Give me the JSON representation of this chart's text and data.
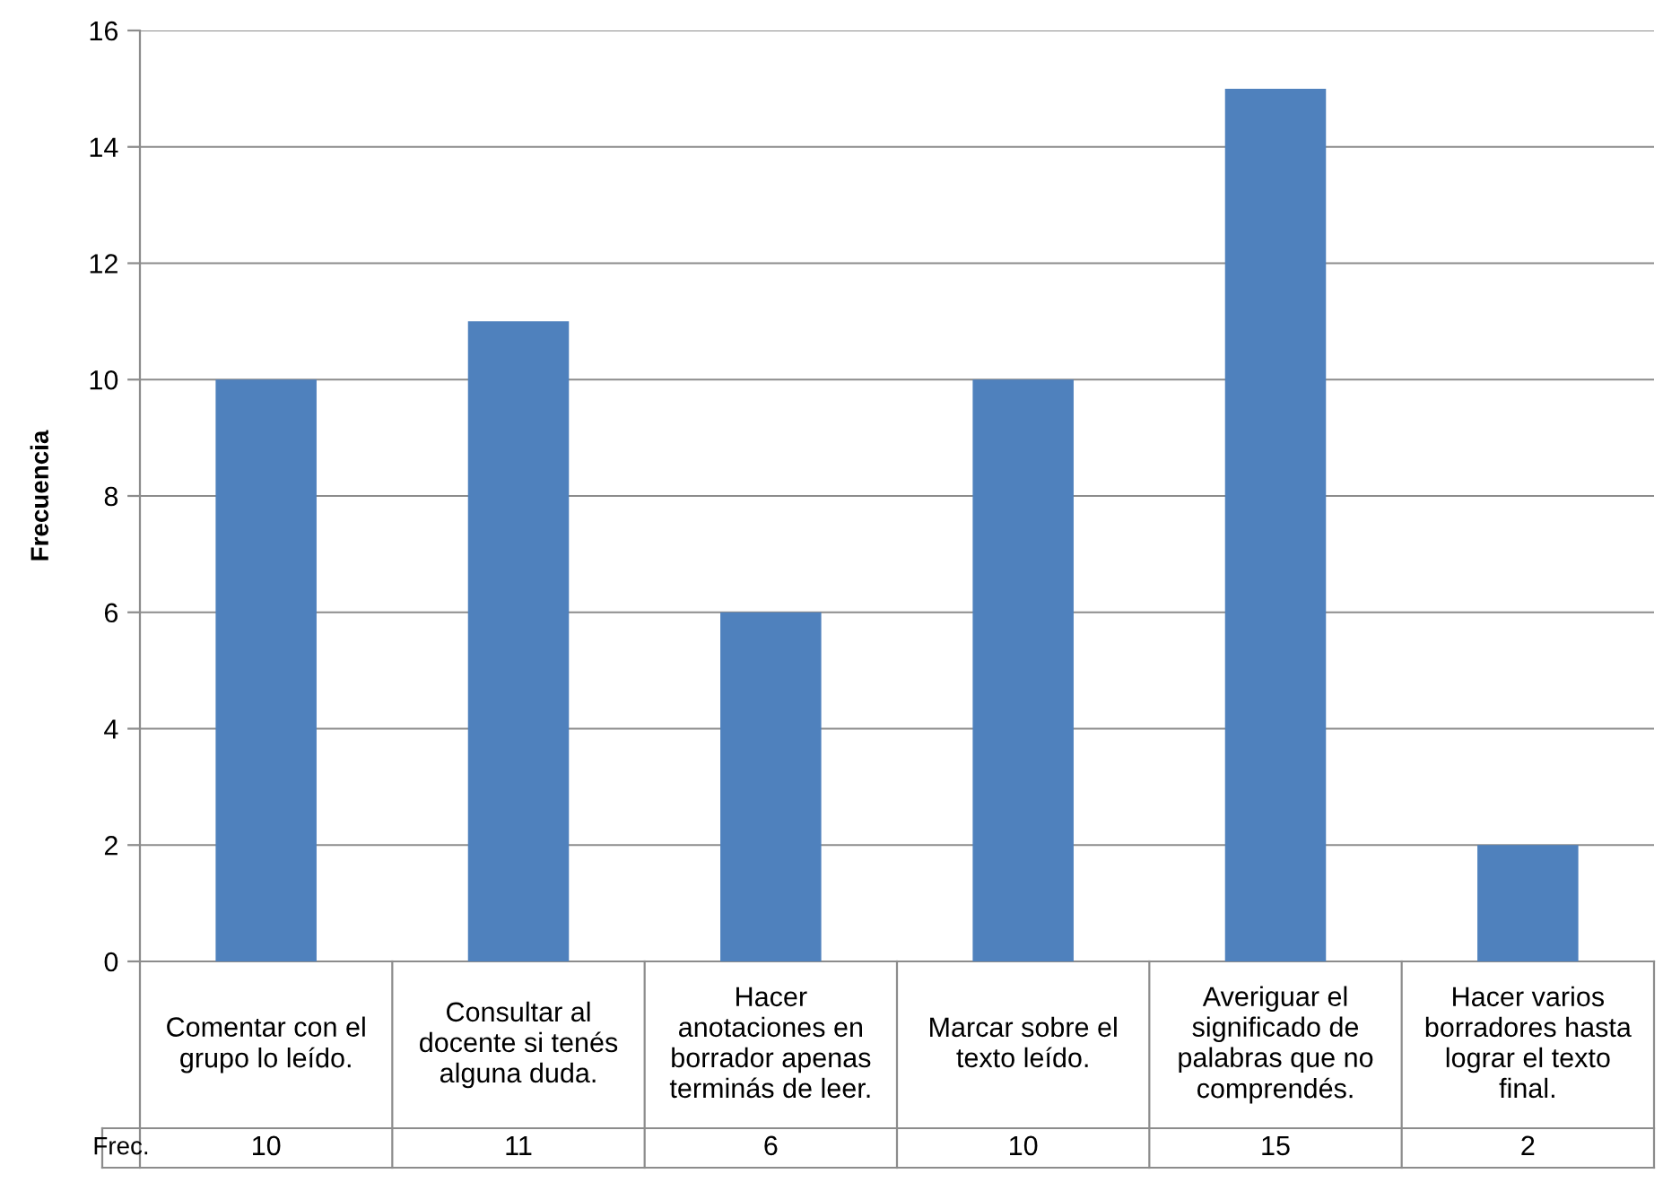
{
  "chart_data": {
    "type": "bar",
    "ylabel": "Frecuencia",
    "categories": [
      "Comentar con el grupo lo leído.",
      "Consultar al docente si tenés alguna duda.",
      "Hacer anotaciones en borrador apenas terminás de leer.",
      "Marcar sobre el texto leído.",
      "Averiguar el significado de palabras que no comprendés.",
      "Hacer varios borradores hasta lograr el texto final."
    ],
    "values": [
      10,
      11,
      6,
      10,
      15,
      2
    ],
    "color": "#4f81bd",
    "ylim": [
      0,
      16
    ],
    "yticks": [
      0,
      2,
      4,
      6,
      8,
      10,
      12,
      14,
      16
    ],
    "grid": "y",
    "data_labels": true,
    "legend": false,
    "annotations": [
      "Frec."
    ]
  }
}
